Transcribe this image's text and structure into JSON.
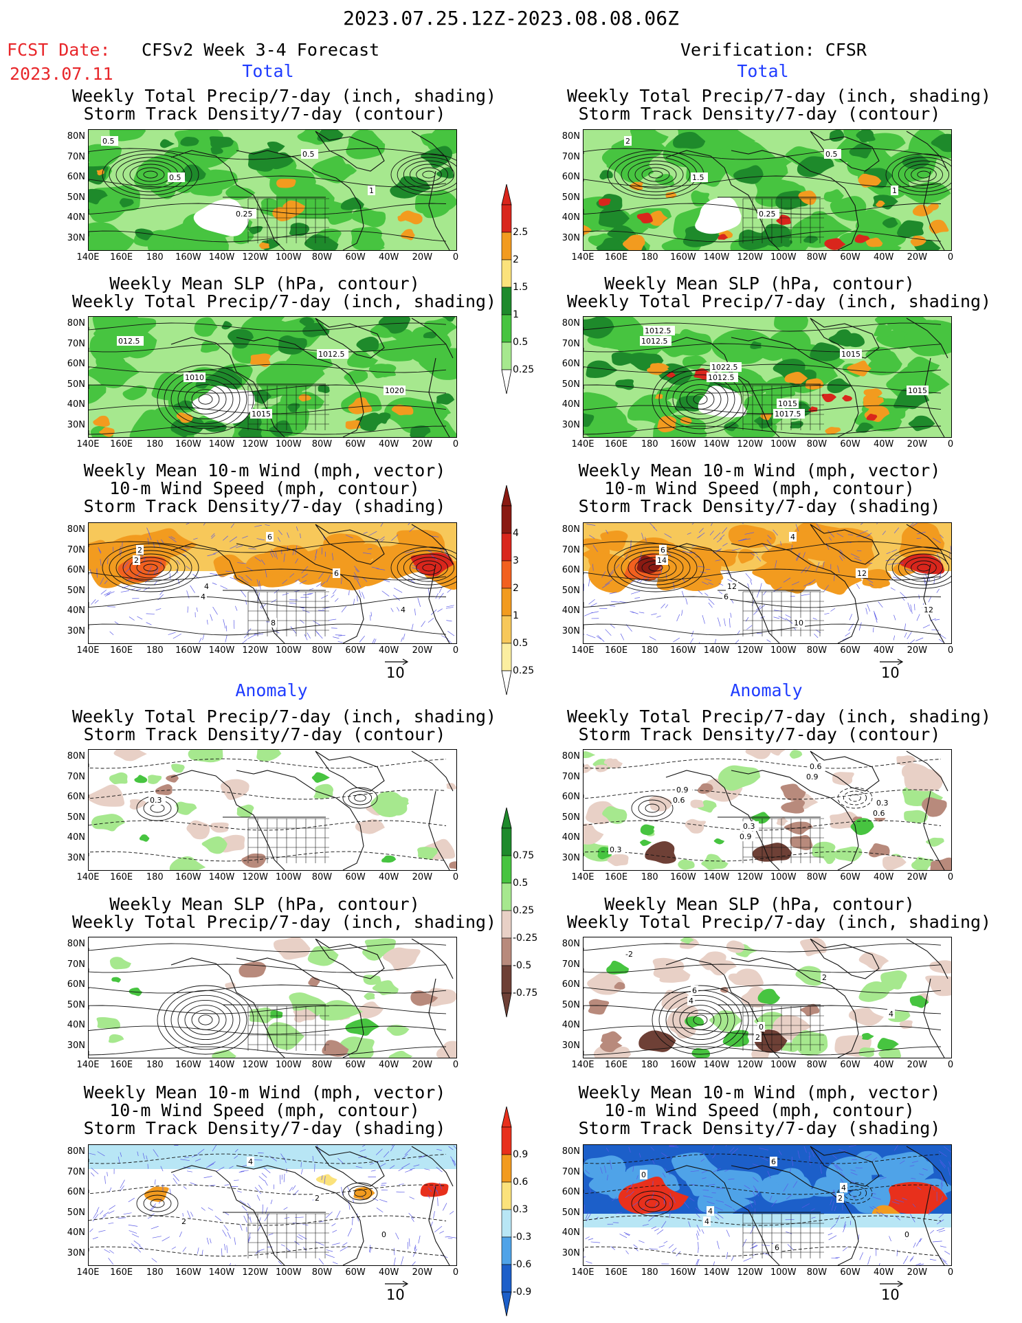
{
  "header": {
    "period": "2023.07.25.12Z-2023.08.08.06Z",
    "fcst_label": "FCST Date:",
    "fcst_date": "2023.07.11",
    "forecast_title": "CFSv2 Week 3-4 Forecast",
    "verification_title": "Verification: CFSR"
  },
  "sections": {
    "total": "Total",
    "anomaly": "Anomaly"
  },
  "panel_titles": {
    "precip_storm": [
      "Weekly Total Precip/7-day (inch, shading)",
      "Storm Track Density/7-day (contour)"
    ],
    "slp_precip": [
      "Weekly Mean SLP (hPa, contour)",
      "Weekly Total Precip/7-day (inch, shading)"
    ],
    "wind_storm": [
      "Weekly Mean 10-m Wind (mph, vector)",
      "10-m Wind Speed (mph, contour)",
      "Storm Track Density/7-day (shading)"
    ]
  },
  "axes": {
    "lat_labels": [
      "80N",
      "70N",
      "60N",
      "50N",
      "40N",
      "30N"
    ],
    "lon_labels": [
      "140E",
      "160E",
      "180",
      "160W",
      "140W",
      "120W",
      "100W",
      "80W",
      "60W",
      "40W",
      "20W",
      "0"
    ]
  },
  "vector_reference": "10",
  "colorbars": {
    "precip_total": {
      "labels": [
        "2.5",
        "2",
        "1.5",
        "1",
        "0.5",
        "0.25"
      ],
      "colors": [
        "#d9261c",
        "#f29b1f",
        "#fbe27b",
        "#1e8a2b",
        "#47c440",
        "#a6e88e"
      ]
    },
    "storm_total": {
      "labels": [
        "4",
        "3",
        "2",
        "1",
        "0.5",
        "0.25"
      ],
      "colors": [
        "#8a1a12",
        "#d9261c",
        "#f2601f",
        "#f29b1f",
        "#f7c85a",
        "#fbeea0"
      ]
    },
    "precip_anom": {
      "labels": [
        "0.75",
        "0.5",
        "0.25",
        "-0.25",
        "-0.5",
        "-0.75"
      ],
      "colors": [
        "#1e8a2b",
        "#47c440",
        "#a6e88e",
        "#e8d0c6",
        "#b88a7c",
        "#6e4036"
      ]
    },
    "storm_anom": {
      "labels": [
        "0.9",
        "0.6",
        "0.3",
        "-0.3",
        "-0.6",
        "-0.9"
      ],
      "colors": [
        "#e8301c",
        "#f29b1f",
        "#fbe27b",
        "#b8e6f5",
        "#4fa3e8",
        "#1c5fc9"
      ]
    }
  },
  "contour_labels": {
    "f_precip": [
      "0.5",
      "0.5",
      "0.25",
      "0.5",
      "1"
    ],
    "v_precip": [
      "2",
      "1.5",
      "0.25",
      "0.5",
      "1"
    ],
    "f_slp": [
      "012.5",
      "1010",
      "1015",
      "1012.5",
      "1020"
    ],
    "v_slp": [
      "1012.5",
      "1012.5",
      "1017.5",
      "1015",
      "1015",
      "1012.5",
      "1022.5",
      "1015"
    ],
    "f_wind": [
      "2",
      "4",
      "6",
      "6",
      "4",
      "2",
      "4",
      "8"
    ],
    "v_wind": [
      "14",
      "6",
      "4",
      "12",
      "12",
      "6",
      "12",
      "10"
    ],
    "f_precip_anom": [
      "0.3"
    ],
    "v_precip_anom": [
      "0.6",
      "0.9",
      "0.9",
      "0.6",
      "0.3",
      "0.9",
      "0.3",
      "0.6",
      "0.3"
    ],
    "v_slp_anom": [
      "4",
      "2",
      "2",
      "4",
      "-2",
      "6",
      "0"
    ],
    "f_wind_anom": [
      "2",
      "4",
      "2",
      "0"
    ],
    "v_wind_anom": [
      "4",
      "6",
      "2",
      "0",
      "0",
      "4",
      "6",
      "4"
    ]
  }
}
